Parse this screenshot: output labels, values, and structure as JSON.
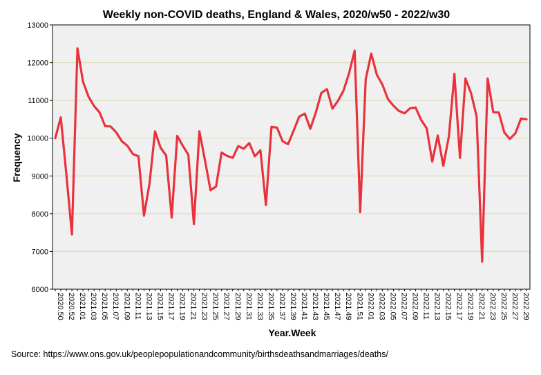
{
  "chart_data": {
    "type": "line",
    "title": "Weekly non-COVID deaths, England & Wales, 2020/w50 - 2022/w30",
    "xlabel": "Year.Week",
    "ylabel": "Frequency",
    "ylim": [
      6000,
      13000
    ],
    "yticks": [
      6000,
      7000,
      8000,
      9000,
      10000,
      11000,
      12000,
      13000
    ],
    "grid": "horizontal",
    "line_color": "#e8323c",
    "plot_background": "#f0f0f0",
    "grid_color": "#d8dcb0",
    "x_tick_labels": [
      "2020.50",
      "2020.52",
      "2021.01",
      "2021.03",
      "2021.05",
      "2021.07",
      "2021.09",
      "2021.11",
      "2021.13",
      "2021.15",
      "2021.17",
      "2021.19",
      "2021.21",
      "2021.23",
      "2021.25",
      "2021.27",
      "2021.29",
      "2021.31",
      "2021.33",
      "2021.35",
      "2021.37",
      "2021.39",
      "2021.41",
      "2021.43",
      "2021.45",
      "2021.47",
      "2021.49",
      "2021.51",
      "2022.01",
      "2022.03",
      "2022.05",
      "2022.07",
      "2022.09",
      "2022.11",
      "2022.13",
      "2022.15",
      "2022.17",
      "2022.19",
      "2022.21",
      "2022.23",
      "2022.25",
      "2022.27",
      "2022.29"
    ],
    "x": [
      "2020.50",
      "2020.51",
      "2020.52",
      "2020.53",
      "2021.01",
      "2021.02",
      "2021.03",
      "2021.04",
      "2021.05",
      "2021.06",
      "2021.07",
      "2021.08",
      "2021.09",
      "2021.10",
      "2021.11",
      "2021.12",
      "2021.13",
      "2021.14",
      "2021.15",
      "2021.16",
      "2021.17",
      "2021.18",
      "2021.19",
      "2021.20",
      "2021.21",
      "2021.22",
      "2021.23",
      "2021.24",
      "2021.25",
      "2021.26",
      "2021.27",
      "2021.28",
      "2021.29",
      "2021.30",
      "2021.31",
      "2021.32",
      "2021.33",
      "2021.34",
      "2021.35",
      "2021.36",
      "2021.37",
      "2021.38",
      "2021.39",
      "2021.40",
      "2021.41",
      "2021.42",
      "2021.43",
      "2021.44",
      "2021.45",
      "2021.46",
      "2021.47",
      "2021.48",
      "2021.49",
      "2021.50",
      "2021.51",
      "2021.52",
      "2022.01",
      "2022.02",
      "2022.03",
      "2022.04",
      "2022.05",
      "2022.06",
      "2022.07",
      "2022.08",
      "2022.09",
      "2022.10",
      "2022.11",
      "2022.12",
      "2022.13",
      "2022.14",
      "2022.15",
      "2022.16",
      "2022.17",
      "2022.18",
      "2022.19",
      "2022.20",
      "2022.21",
      "2022.22",
      "2022.23",
      "2022.24",
      "2022.25",
      "2022.26",
      "2022.27",
      "2022.28",
      "2022.29",
      "2022.30"
    ],
    "series": [
      {
        "name": "Weekly non-COVID deaths",
        "values": [
          10000,
          10550,
          9050,
          7450,
          12380,
          11500,
          11100,
          10850,
          10680,
          10320,
          10310,
          10150,
          9920,
          9800,
          9580,
          9520,
          7950,
          8800,
          10180,
          9750,
          9540,
          7900,
          10060,
          9800,
          9560,
          7730,
          10180,
          9420,
          8620,
          8720,
          9620,
          9530,
          9480,
          9790,
          9720,
          9870,
          9520,
          9680,
          8230,
          10300,
          10280,
          9920,
          9840,
          10200,
          10570,
          10650,
          10250,
          10680,
          11200,
          11300,
          10780,
          10990,
          11260,
          11720,
          12320,
          8040,
          11560,
          12240,
          11680,
          11420,
          11040,
          10860,
          10720,
          10660,
          10790,
          10810,
          10480,
          10260,
          9380,
          10070,
          9270,
          10050,
          11700,
          9480,
          11580,
          11190,
          10580,
          6730,
          11580,
          10690,
          10680,
          10150,
          9980,
          10130,
          10520,
          10500
        ]
      }
    ]
  },
  "source_text": "Source: https://www.ons.gov.uk/peoplepopulationandcommunity/birthsdeathsandmarriages/deaths/"
}
